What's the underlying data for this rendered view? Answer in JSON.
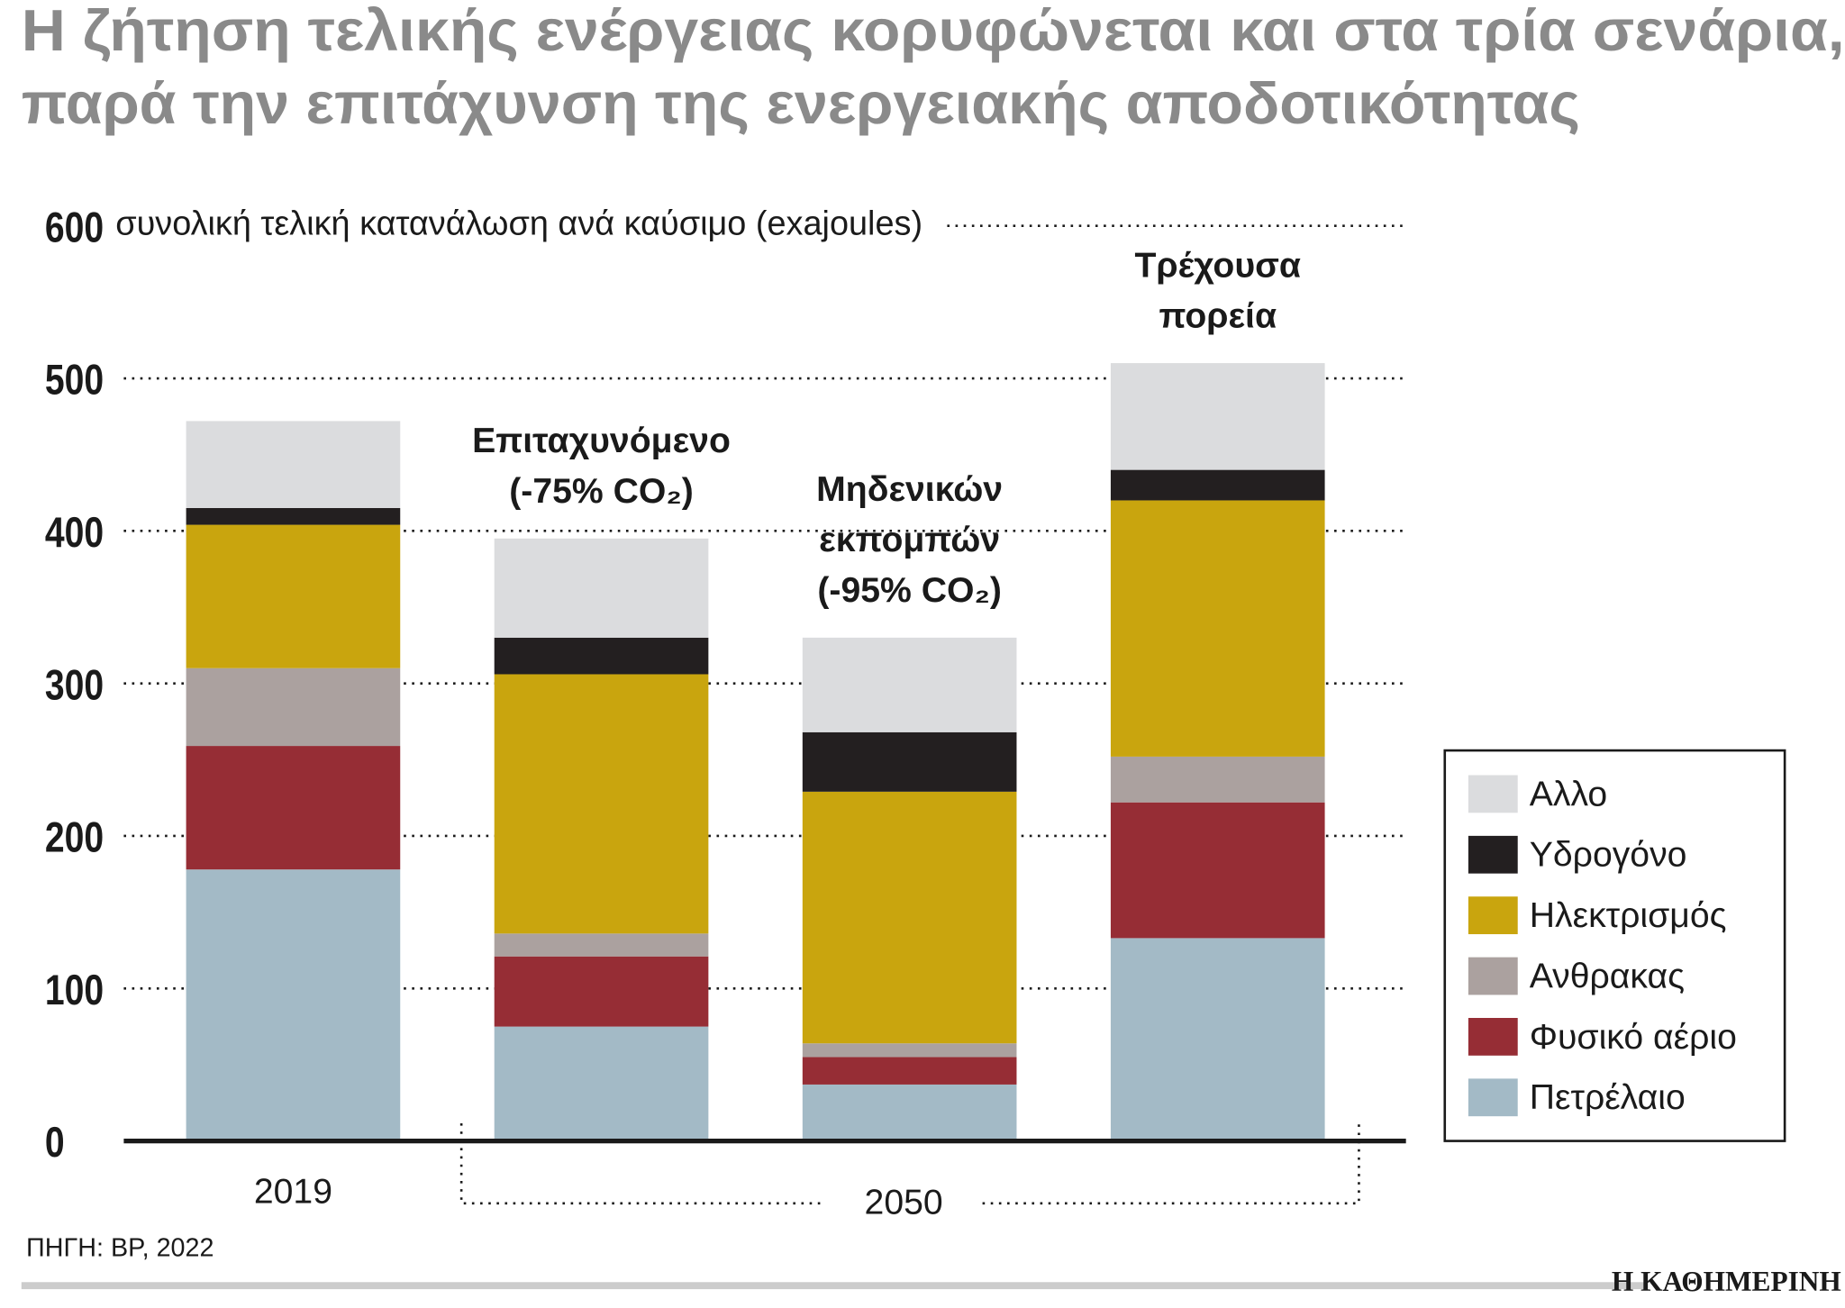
{
  "chart_data": {
    "type": "stacked_bar",
    "title": "Η ζήτηση τελικής ενέργειας κορυφώνεται και στα τρία σενάρια,\nπαρά την επιτάχυνση της ενεργειακής αποδοτικότητας",
    "y_label": "συνολική τελική κατανάλωση ανά καύσιμο (exajoules)",
    "categories": [
      "2019",
      "Επιταχυνόμενο\n(-75% CO₂)",
      "Μηδενικών\nεκπομπών\n(-95% CO₂)",
      "Τρέχουσα\nπορεία"
    ],
    "group_label": "2050",
    "series": [
      {
        "name": "Πετρέλαιο",
        "color": "#a3bac6",
        "values": [
          178,
          75,
          37,
          133
        ]
      },
      {
        "name": "Φυσικό αέριο",
        "color": "#962d35",
        "values": [
          81,
          46,
          18,
          89
        ]
      },
      {
        "name": "Ανθρακας",
        "color": "#aba19f",
        "values": [
          51,
          15,
          9,
          30
        ]
      },
      {
        "name": "Ηλεκτρισμός",
        "color": "#c9a50e",
        "values": [
          94,
          170,
          165,
          168
        ]
      },
      {
        "name": "Υδρογόνο",
        "color": "#231f20",
        "values": [
          11,
          24,
          39,
          20
        ]
      },
      {
        "name": "Αλλο",
        "color": "#dbdcde",
        "values": [
          57,
          65,
          62,
          70
        ]
      }
    ],
    "ylim": [
      0,
      600
    ],
    "yticks": [
      0,
      100,
      200,
      300,
      400,
      500,
      600
    ],
    "grid": true,
    "legend": "right",
    "source": "ΠΗΓΗ: BP, 2022",
    "brand": "Η ΚΑΘΗΜΕΡΙΝΗ"
  }
}
